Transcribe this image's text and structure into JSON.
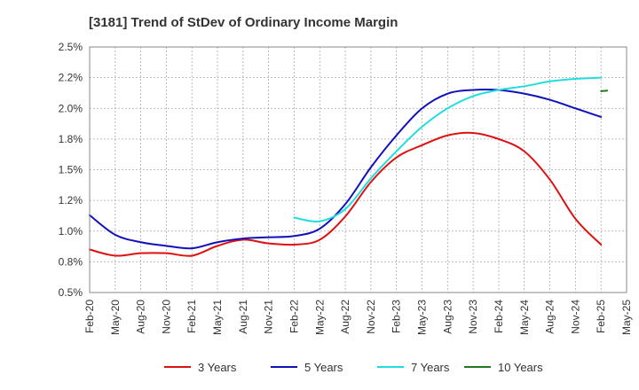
{
  "chart_data": {
    "type": "line",
    "title": "[3181]  Trend of StDev of Ordinary Income Margin",
    "x": [
      "Feb-20",
      "May-20",
      "Aug-20",
      "Nov-20",
      "Feb-21",
      "May-21",
      "Aug-21",
      "Nov-21",
      "Feb-22",
      "May-22",
      "Aug-22",
      "Nov-22",
      "Feb-23",
      "May-23",
      "Aug-23",
      "Nov-23",
      "Feb-24",
      "May-24",
      "Aug-24",
      "Nov-24",
      "Feb-25",
      "May-25"
    ],
    "ylim": [
      0.005,
      0.025
    ],
    "yticks": [
      "0.5%",
      "0.8%",
      "1.0%",
      "1.2%",
      "1.5%",
      "1.8%",
      "2.0%",
      "2.2%",
      "2.5%"
    ],
    "grid": true,
    "legend_position": "bottom",
    "series": [
      {
        "name": "3 Years",
        "color": "#dd1111",
        "values": [
          0.0085,
          0.008,
          0.0082,
          0.0082,
          0.008,
          0.0088,
          0.0093,
          0.009,
          0.0089,
          0.0093,
          0.0112,
          0.014,
          0.016,
          0.017,
          0.0178,
          0.018,
          0.0175,
          0.0165,
          0.0142,
          0.011,
          0.0089,
          null
        ]
      },
      {
        "name": "5 Years",
        "color": "#1111bb",
        "values": [
          0.0113,
          0.0097,
          0.0091,
          0.0088,
          0.0086,
          0.0091,
          0.0094,
          0.0095,
          0.0096,
          0.0102,
          0.0122,
          0.0152,
          0.0178,
          0.02,
          0.0212,
          0.0215,
          0.0215,
          0.0212,
          0.0207,
          0.02,
          0.0193,
          null
        ]
      },
      {
        "name": "7 Years",
        "color": "#22dddd",
        "values": [
          null,
          null,
          null,
          null,
          null,
          null,
          null,
          null,
          0.0111,
          0.0108,
          0.0118,
          0.0143,
          0.0165,
          0.0185,
          0.02,
          0.021,
          0.0215,
          0.0218,
          0.0222,
          0.0224,
          0.0225,
          null
        ]
      },
      {
        "name": "10 Years",
        "color": "#227722",
        "values": [
          null,
          null,
          null,
          null,
          null,
          null,
          null,
          null,
          null,
          null,
          null,
          null,
          null,
          null,
          null,
          null,
          null,
          null,
          null,
          null,
          0.0214,
          null
        ]
      }
    ]
  }
}
